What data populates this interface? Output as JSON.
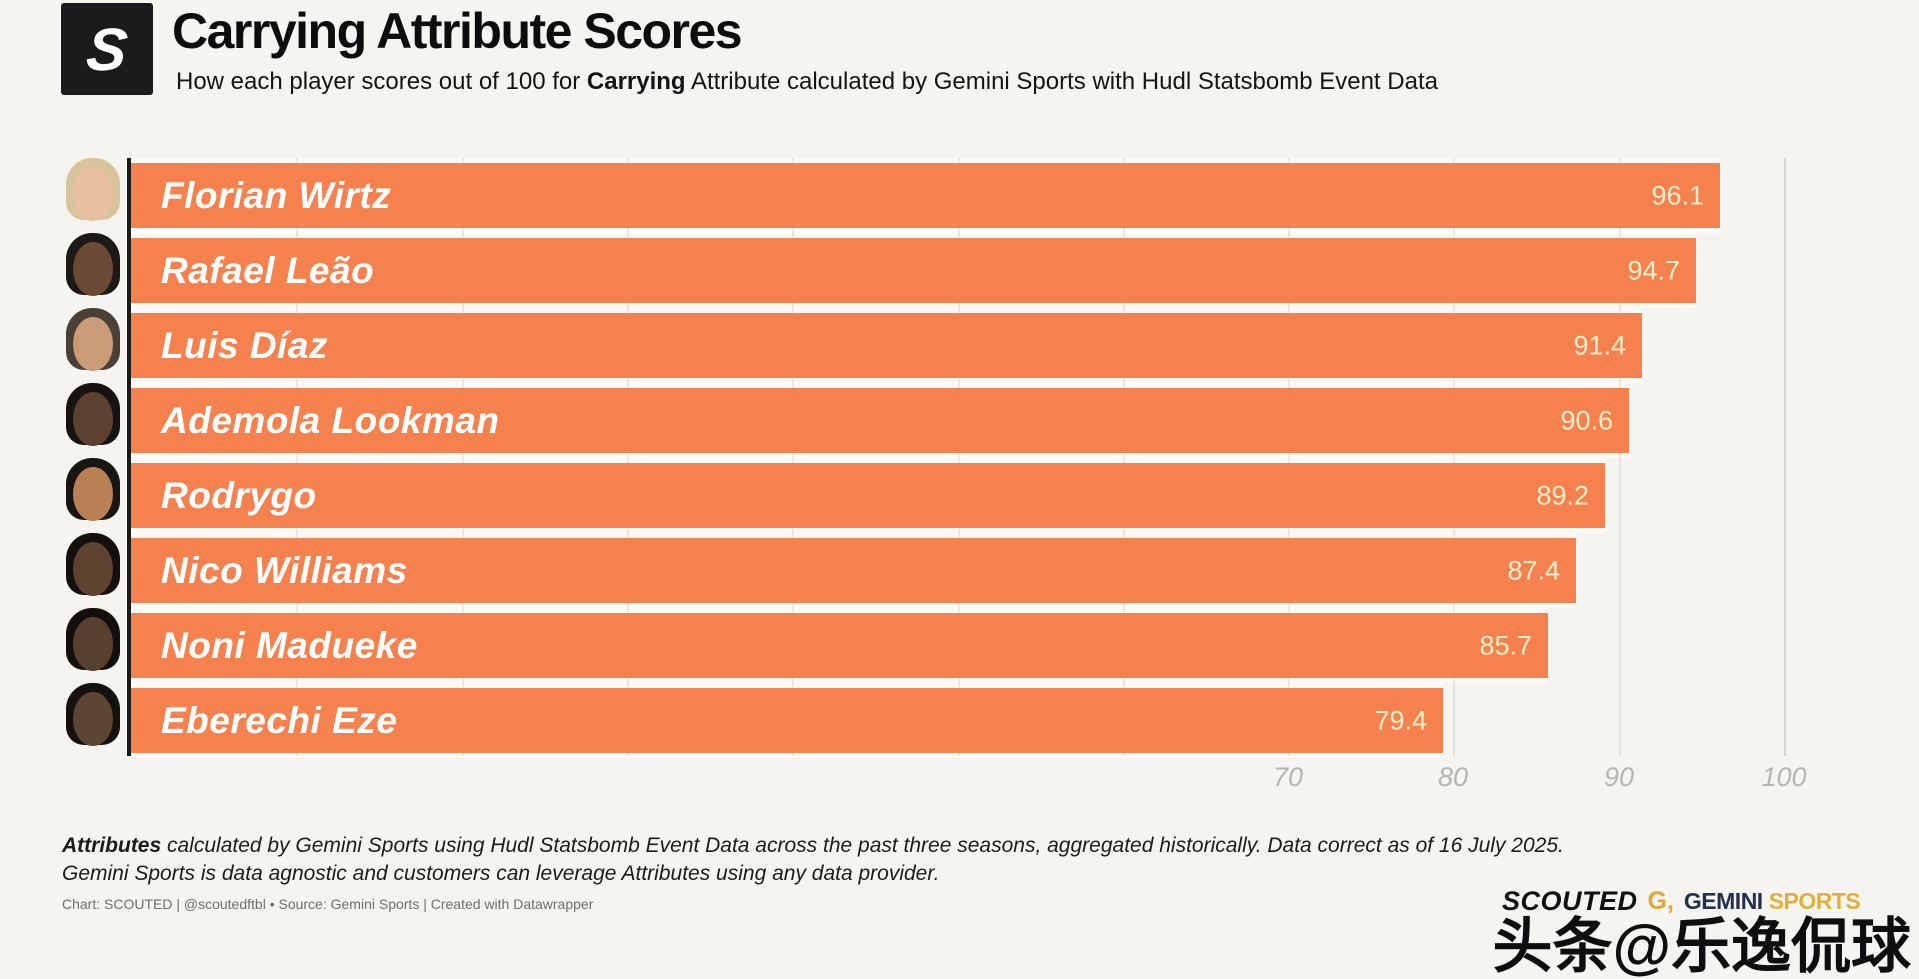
{
  "header": {
    "logo_letter": "S",
    "title": "Carrying Attribute Scores",
    "subtitle_prefix": "How each player scores out of 100 for ",
    "subtitle_bold": "Carrying",
    "subtitle_suffix": " Attribute calculated by Gemini Sports with Hudl Statsbomb Event Data"
  },
  "chart_data": {
    "type": "bar",
    "orientation": "horizontal",
    "title": "Carrying Attribute Scores",
    "categories": [
      "Florian Wirtz",
      "Rafael Leão",
      "Luis Díaz",
      "Ademola Lookman",
      "Rodrygo",
      "Nico Williams",
      "Noni Madueke",
      "Eberechi Eze"
    ],
    "values": [
      96.1,
      94.7,
      91.4,
      90.6,
      89.2,
      87.4,
      85.7,
      79.4
    ],
    "xlabel": "",
    "ylabel": "",
    "xlim": [
      0,
      100
    ],
    "x_tick_labels": [
      "70",
      "80",
      "90",
      "100"
    ],
    "x_tick_values": [
      70,
      80,
      90,
      100
    ],
    "gridline_step": 10,
    "grid": true,
    "legend_position": "none",
    "bar_color": "#f5824e",
    "value_label_color": "#fbeecb",
    "name_label_color": "#ffffff"
  },
  "avatars": [
    {
      "skin": "#e9bfa2",
      "hair": "#d7c49a"
    },
    {
      "skin": "#6b4a35",
      "hair": "#1d1916"
    },
    {
      "skin": "#c99b77",
      "hair": "#4a4038"
    },
    {
      "skin": "#5c4030",
      "hair": "#171310"
    },
    {
      "skin": "#b98055",
      "hair": "#181512"
    },
    {
      "skin": "#5f4230",
      "hair": "#14100e"
    },
    {
      "skin": "#57402f",
      "hair": "#120f0d"
    },
    {
      "skin": "#5d4534",
      "hair": "#15110f"
    }
  ],
  "footer": {
    "note_bold": "Attributes",
    "note_line1_rest": " calculated by Gemini Sports using Hudl Statsbomb Event Data across the past three seasons, aggregated historically. Data correct as of 16 July 2025.",
    "note_line2": "Gemini Sports is data agnostic and customers can leverage Attributes using any data provider.",
    "credit": "Chart: SCOUTED | @scoutedftbl • Source: Gemini Sports | Created with Datawrapper"
  },
  "branding": {
    "scouted_wordmark": "SCOUTED",
    "gemini_g": "G,",
    "gemini_word": "GEMINI",
    "sports_word": "SPORTS",
    "watermark": "头条@乐逸侃球"
  },
  "colors": {
    "background": "#f5f4f1",
    "bar_orange": "#f5824e",
    "value_cream": "#fbeecb",
    "axis_black": "#1a1a1a",
    "tick_gray": "#b7b5b1",
    "row_gap_white": "#fbfaf7",
    "gemini_navy": "#25304e",
    "gemini_gold": "#e0b03c"
  }
}
